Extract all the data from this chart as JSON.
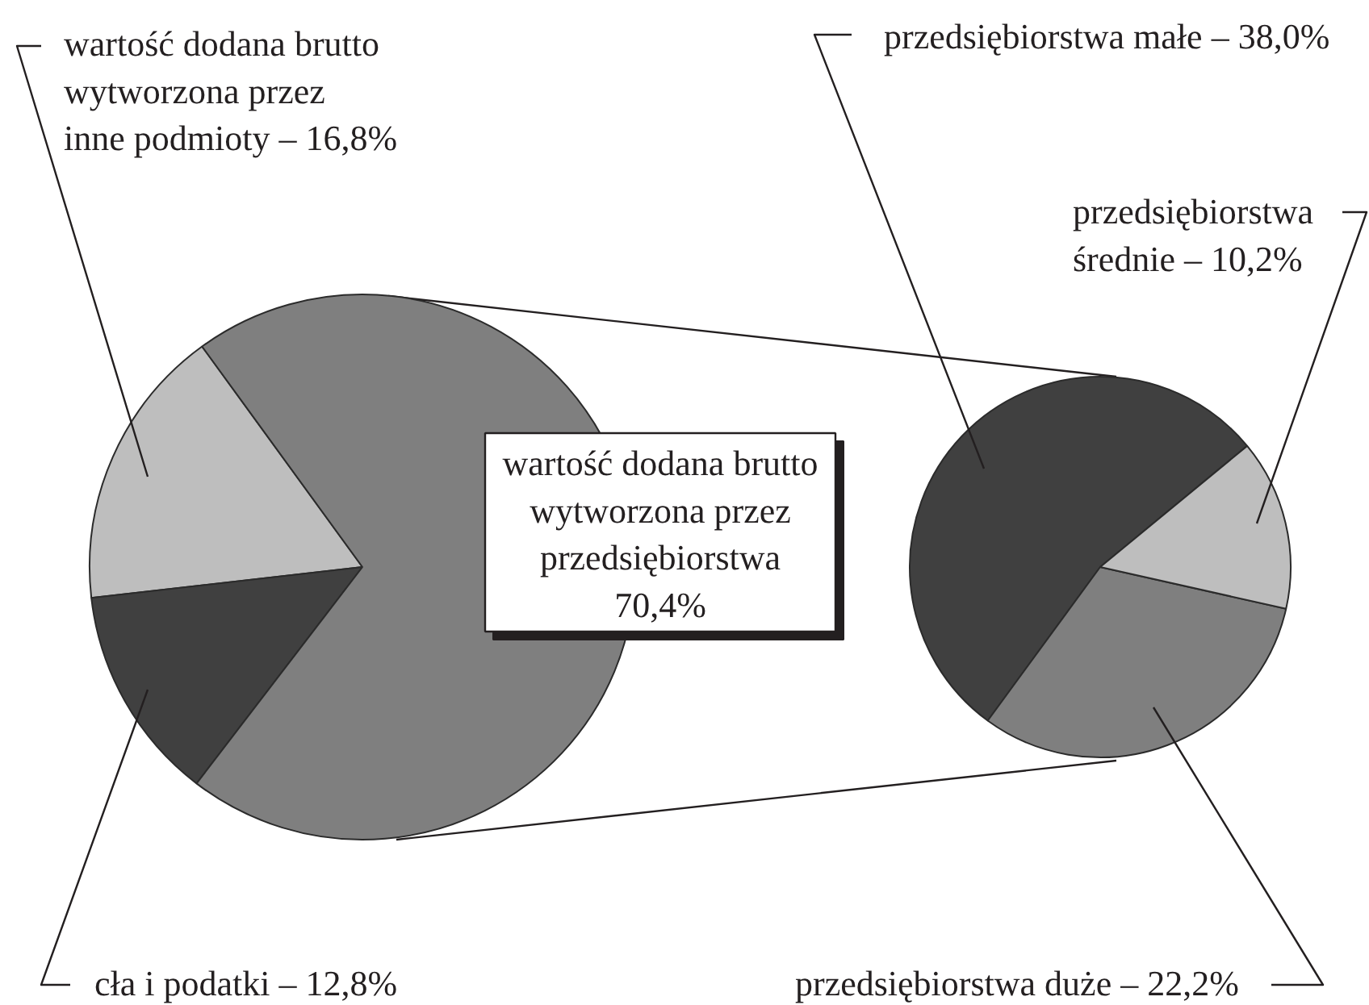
{
  "chart_data": [
    {
      "type": "pie",
      "categories": [
        "wartość dodana brutto\nwytworzona przez\ninne podmioty",
        "cła i podatki",
        "wartość dodana brutto\nwytworzona przez\nprzedsiębiorstwa"
      ],
      "values": [
        16.8,
        12.8,
        70.4
      ],
      "value_labels": [
        "16,8%",
        "12,8%",
        "70,4%"
      ],
      "colors": [
        "#bebebe",
        "#404040",
        "#7f7f7f"
      ]
    },
    {
      "type": "pie",
      "categories": [
        "przedsiębiorstwa małe",
        "przedsiębiorstwa duże",
        "przedsiębiorstwa\nśrednie"
      ],
      "values": [
        38.0,
        22.2,
        10.2
      ],
      "value_labels": [
        "38,0%",
        "22,2%",
        "10,2%"
      ],
      "colors": [
        "#404040",
        "#7f7f7f",
        "#bebebe"
      ]
    }
  ]
}
